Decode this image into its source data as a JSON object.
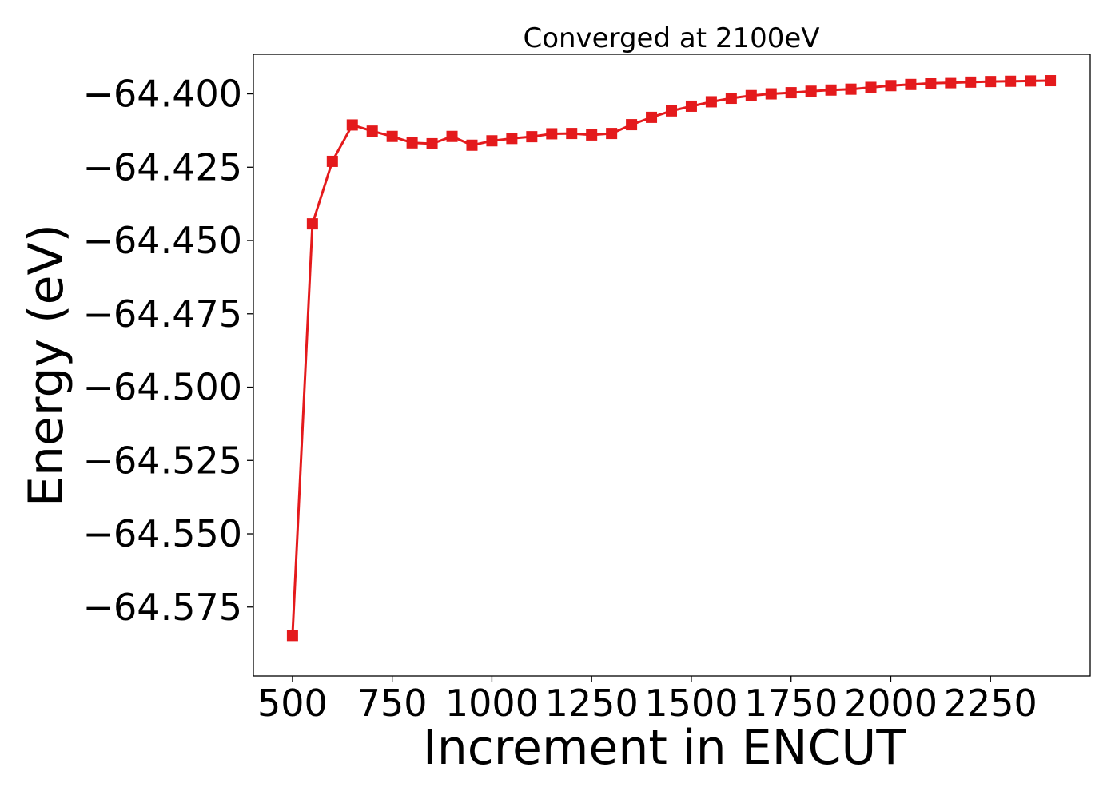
{
  "chart_data": {
    "type": "line",
    "title": "Converged at 2100eV",
    "xlabel": "Increment in ENCUT",
    "ylabel": "Energy (eV)",
    "xlim": [
      402,
      2500
    ],
    "ylim": [
      -64.5985,
      -64.3865
    ],
    "grid": false,
    "legend": "none",
    "color": "#e41a1c",
    "marker": "square",
    "x_ticks": [
      500,
      750,
      1000,
      1250,
      1500,
      1750,
      2000,
      2250
    ],
    "y_ticks": [
      -64.4,
      -64.425,
      -64.45,
      -64.475,
      -64.5,
      -64.525,
      -64.55,
      -64.575
    ],
    "x_tick_labels": [
      "500",
      "750",
      "1000",
      "1250",
      "1500",
      "1750",
      "2000",
      "2250"
    ],
    "y_tick_labels": [
      "−64.400",
      "−64.425",
      "−64.450",
      "−64.475",
      "−64.500",
      "−64.525",
      "−64.550",
      "−64.575"
    ],
    "x": [
      500,
      550,
      600,
      650,
      700,
      750,
      800,
      850,
      900,
      950,
      1000,
      1050,
      1100,
      1150,
      1200,
      1250,
      1300,
      1350,
      1400,
      1450,
      1500,
      1550,
      1600,
      1650,
      1700,
      1750,
      1800,
      1850,
      1900,
      1950,
      2000,
      2050,
      2100,
      2150,
      2200,
      2250,
      2300,
      2350,
      2400
    ],
    "y": [
      -64.5847,
      -64.4443,
      -64.423,
      -64.4106,
      -64.4127,
      -64.4145,
      -64.4167,
      -64.417,
      -64.4145,
      -64.4175,
      -64.416,
      -64.4152,
      -64.4146,
      -64.4136,
      -64.4135,
      -64.414,
      -64.4135,
      -64.4105,
      -64.408,
      -64.4058,
      -64.4042,
      -64.4027,
      -64.4015,
      -64.4006,
      -64.4,
      -64.3996,
      -64.3991,
      -64.3987,
      -64.3984,
      -64.3978,
      -64.3972,
      -64.3968,
      -64.3964,
      -64.3962,
      -64.396,
      -64.3958,
      -64.3957,
      -64.3956,
      -64.3955
    ]
  }
}
